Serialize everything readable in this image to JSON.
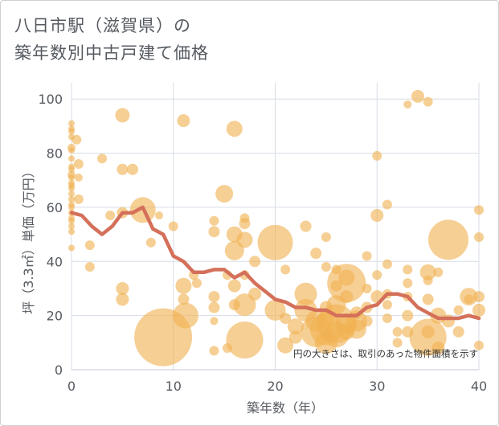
{
  "chart_data": {
    "type": "scatter",
    "title_line1": "八日市駅（滋賀県）の",
    "title_line2": "築年数別中古戸建て価格",
    "xlabel": "築年数（年）",
    "ylabel": "坪（3.3㎡）単価（万円）",
    "annotation": "円の大きさは、取引のあった物件面積を示す",
    "xlim": [
      0,
      40
    ],
    "ylim": [
      0,
      106
    ],
    "xticks": [
      0,
      10,
      20,
      30,
      40
    ],
    "yticks": [
      0,
      20,
      40,
      60,
      80,
      100
    ],
    "grid": true,
    "colors": {
      "bubble": "#f0b153",
      "line": "#d4705a",
      "grid": "#d7dde6",
      "text": "#555a60"
    },
    "series": [
      {
        "name": "average",
        "type": "line",
        "x": [
          0,
          1,
          2,
          3,
          4,
          5,
          6,
          7,
          8,
          9,
          10,
          11,
          12,
          13,
          14,
          15,
          16,
          17,
          18,
          19,
          20,
          21,
          22,
          23,
          24,
          25,
          26,
          27,
          28,
          29,
          30,
          31,
          32,
          33,
          34,
          35,
          36,
          37,
          38,
          39,
          40
        ],
        "y": [
          58,
          57,
          53,
          50,
          53,
          58,
          58,
          60,
          52,
          50,
          42,
          40,
          36,
          36,
          37,
          37,
          34,
          36,
          32,
          29,
          26,
          25,
          23,
          23,
          22,
          22,
          20,
          20,
          20,
          23,
          24,
          28,
          28,
          27,
          23,
          21,
          19,
          19,
          19,
          20,
          19
        ]
      },
      {
        "name": "transactions",
        "type": "bubble",
        "points": [
          [
            0,
            91,
            4
          ],
          [
            0,
            89,
            4
          ],
          [
            0,
            88,
            4
          ],
          [
            0,
            86,
            4
          ],
          [
            0,
            82,
            5
          ],
          [
            0,
            81,
            4
          ],
          [
            0,
            78,
            4
          ],
          [
            0,
            75,
            4
          ],
          [
            0,
            74,
            4
          ],
          [
            0,
            72,
            5
          ],
          [
            0,
            71,
            4
          ],
          [
            0,
            69,
            4
          ],
          [
            0,
            68,
            4
          ],
          [
            0,
            67,
            4
          ],
          [
            0,
            65,
            4
          ],
          [
            0,
            63,
            4
          ],
          [
            0,
            61,
            4
          ],
          [
            0,
            60,
            4
          ],
          [
            0,
            58,
            4
          ],
          [
            0,
            56,
            4
          ],
          [
            0,
            55,
            4
          ],
          [
            0,
            53,
            4
          ],
          [
            0,
            51,
            4
          ],
          [
            0,
            45,
            4
          ],
          [
            0.5,
            85,
            6
          ],
          [
            0.7,
            76,
            6
          ],
          [
            0.7,
            71,
            5
          ],
          [
            0.7,
            63,
            6
          ],
          [
            1.8,
            46,
            6
          ],
          [
            1.8,
            38,
            6
          ],
          [
            3,
            78,
            6
          ],
          [
            3.8,
            57,
            6
          ],
          [
            5,
            94,
            9
          ],
          [
            5,
            74,
            7
          ],
          [
            5,
            58,
            7
          ],
          [
            5,
            30,
            8
          ],
          [
            5,
            26,
            8
          ],
          [
            6,
            74,
            7
          ],
          [
            7,
            59,
            16
          ],
          [
            7.8,
            47,
            6
          ],
          [
            8.6,
            57,
            5
          ],
          [
            9,
            12,
            36
          ],
          [
            10,
            53,
            6
          ],
          [
            11,
            92,
            8
          ],
          [
            11,
            31,
            10
          ],
          [
            11,
            26,
            7
          ],
          [
            11.2,
            20,
            16
          ],
          [
            12,
            35,
            6
          ],
          [
            12.3,
            32,
            6
          ],
          [
            14,
            55,
            6
          ],
          [
            14,
            51,
            7
          ],
          [
            14,
            27,
            7
          ],
          [
            14,
            23,
            7
          ],
          [
            14,
            18,
            5
          ],
          [
            14,
            7,
            6
          ],
          [
            15,
            65,
            11
          ],
          [
            15.3,
            35,
            6
          ],
          [
            15.3,
            8,
            6
          ],
          [
            16,
            89,
            10
          ],
          [
            16,
            50,
            10
          ],
          [
            16,
            44,
            12
          ],
          [
            16,
            31,
            8
          ],
          [
            16,
            24,
            7
          ],
          [
            17,
            56,
            6
          ],
          [
            17,
            54,
            7
          ],
          [
            17,
            48,
            10
          ],
          [
            17,
            35,
            6
          ],
          [
            17,
            24,
            14
          ],
          [
            17,
            11,
            23
          ],
          [
            18,
            40,
            7
          ],
          [
            18,
            28,
            8
          ],
          [
            20,
            47,
            22
          ],
          [
            20,
            22,
            13
          ],
          [
            21,
            37,
            6
          ],
          [
            21,
            19,
            7
          ],
          [
            21,
            9,
            10
          ],
          [
            22,
            16,
            10
          ],
          [
            22,
            12,
            8
          ],
          [
            23,
            53,
            7
          ],
          [
            23,
            28,
            14
          ],
          [
            23,
            22,
            14
          ],
          [
            24,
            43,
            7
          ],
          [
            24,
            18,
            13
          ],
          [
            24,
            14,
            19
          ],
          [
            25,
            49,
            6
          ],
          [
            25,
            38,
            6
          ],
          [
            25,
            23,
            8
          ],
          [
            25,
            19,
            10
          ],
          [
            25,
            15,
            20
          ],
          [
            25,
            10,
            14
          ],
          [
            26,
            37,
            6
          ],
          [
            26,
            31,
            7
          ],
          [
            26,
            24,
            12
          ],
          [
            26,
            17,
            24
          ],
          [
            26,
            13,
            16
          ],
          [
            27,
            34,
            10
          ],
          [
            27,
            32,
            24
          ],
          [
            27,
            27,
            8
          ],
          [
            27,
            17,
            13
          ],
          [
            27,
            14,
            10
          ],
          [
            28,
            21,
            8
          ],
          [
            28,
            18,
            13
          ],
          [
            28,
            15,
            12
          ],
          [
            29,
            42,
            6
          ],
          [
            29,
            30,
            6
          ],
          [
            29,
            23,
            7
          ],
          [
            29,
            18,
            7
          ],
          [
            30,
            79,
            6
          ],
          [
            30,
            57,
            8
          ],
          [
            30,
            35,
            6
          ],
          [
            30,
            27,
            8
          ],
          [
            31,
            61,
            6
          ],
          [
            31,
            39,
            6
          ],
          [
            31,
            28,
            6
          ],
          [
            31,
            24,
            6
          ],
          [
            31,
            19,
            6
          ],
          [
            32,
            14,
            6
          ],
          [
            32,
            10,
            6
          ],
          [
            33,
            98,
            5
          ],
          [
            33,
            37,
            6
          ],
          [
            33,
            32,
            6
          ],
          [
            33,
            27,
            6
          ],
          [
            33,
            20,
            7
          ],
          [
            33,
            14,
            7
          ],
          [
            34,
            101,
            8
          ],
          [
            35,
            99,
            6
          ],
          [
            35,
            36,
            10
          ],
          [
            35,
            33,
            6
          ],
          [
            35,
            26,
            7
          ],
          [
            35,
            14,
            8
          ],
          [
            35,
            12,
            23
          ],
          [
            36,
            36,
            6
          ],
          [
            36,
            20,
            10
          ],
          [
            36,
            8,
            8
          ],
          [
            37,
            48,
            25
          ],
          [
            37,
            18,
            8
          ],
          [
            38,
            22,
            6
          ],
          [
            38,
            14,
            7
          ],
          [
            39,
            27,
            11
          ],
          [
            39,
            26,
            6
          ],
          [
            40,
            59,
            6
          ],
          [
            40,
            49,
            6
          ],
          [
            40,
            27,
            7
          ],
          [
            40,
            22,
            8
          ],
          [
            40,
            9,
            6
          ]
        ]
      }
    ]
  }
}
